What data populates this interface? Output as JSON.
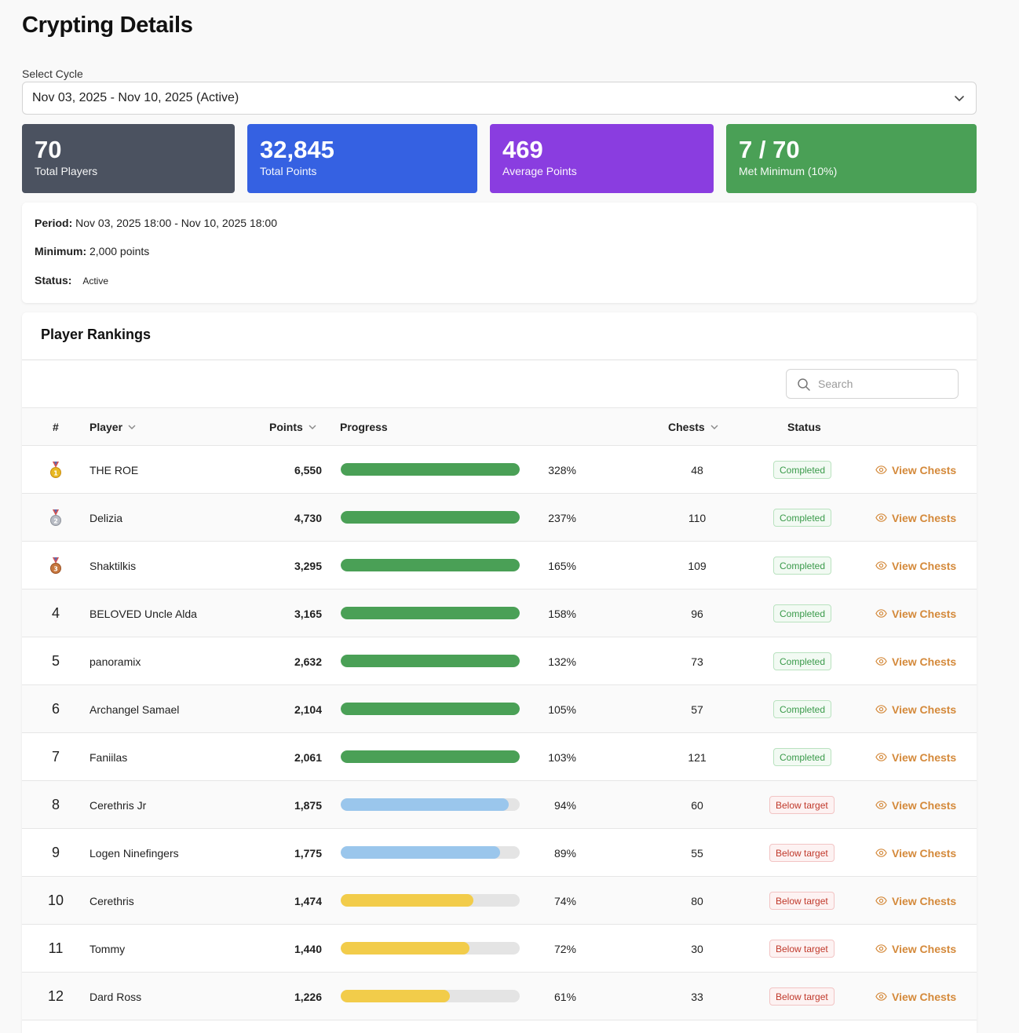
{
  "page": {
    "title": "Crypting Details",
    "cycle_label": "Select Cycle",
    "cycle_value": "Nov 03, 2025 - Nov 10, 2025 (Active)"
  },
  "stats": [
    {
      "value": "70",
      "label": "Total Players",
      "color": "#4b5260"
    },
    {
      "value": "32,845",
      "label": "Total Points",
      "color": "#3561e2"
    },
    {
      "value": "469",
      "label": "Average Points",
      "color": "#8a3de0"
    },
    {
      "value": "7 / 70",
      "label": "Met Minimum (10%)",
      "color": "#4aa056"
    }
  ],
  "info": {
    "period_label": "Period:",
    "period_value": "Nov 03, 2025 18:00 - Nov 10, 2025 18:00",
    "minimum_label": "Minimum:",
    "minimum_value": "2,000 points",
    "status_label": "Status:",
    "status_value": "Active"
  },
  "rankings": {
    "title": "Player Rankings",
    "search_placeholder": "Search",
    "headers": {
      "rank": "#",
      "player": "Player",
      "points": "Points",
      "progress": "Progress",
      "chests": "Chests",
      "status": "Status"
    },
    "view_label": "View Chests",
    "colors": {
      "complete": "#4aa056",
      "near": "#9ac6ec",
      "mid": "#f2cc4a",
      "link": "#d4893a"
    },
    "rows": [
      {
        "rank": "1",
        "medal": "gold-medal-icon",
        "player": "THE ROE",
        "points": "6,550",
        "progress": 3.28,
        "pct": "328%",
        "chests": "48",
        "status": "Completed"
      },
      {
        "rank": "2",
        "medal": "silver-medal-icon",
        "player": "Delizia",
        "points": "4,730",
        "progress": 2.37,
        "pct": "237%",
        "chests": "110",
        "status": "Completed"
      },
      {
        "rank": "3",
        "medal": "bronze-medal-icon",
        "player": "Shaktilkis",
        "points": "3,295",
        "progress": 1.65,
        "pct": "165%",
        "chests": "109",
        "status": "Completed"
      },
      {
        "rank": "4",
        "player": "BELOVED Uncle Alda",
        "points": "3,165",
        "progress": 1.58,
        "pct": "158%",
        "chests": "96",
        "status": "Completed"
      },
      {
        "rank": "5",
        "player": "panoramix",
        "points": "2,632",
        "progress": 1.32,
        "pct": "132%",
        "chests": "73",
        "status": "Completed"
      },
      {
        "rank": "6",
        "player": "Archangel Samael",
        "points": "2,104",
        "progress": 1.05,
        "pct": "105%",
        "chests": "57",
        "status": "Completed"
      },
      {
        "rank": "7",
        "player": "Faniilas",
        "points": "2,061",
        "progress": 1.03,
        "pct": "103%",
        "chests": "121",
        "status": "Completed"
      },
      {
        "rank": "8",
        "player": "Cerethris Jr",
        "points": "1,875",
        "progress": 0.94,
        "pct": "94%",
        "chests": "60",
        "status": "Below target"
      },
      {
        "rank": "9",
        "player": "Logen Ninefingers",
        "points": "1,775",
        "progress": 0.89,
        "pct": "89%",
        "chests": "55",
        "status": "Below target"
      },
      {
        "rank": "10",
        "player": "Cerethris",
        "points": "1,474",
        "progress": 0.74,
        "pct": "74%",
        "chests": "80",
        "status": "Below target"
      },
      {
        "rank": "11",
        "player": "Tommy",
        "points": "1,440",
        "progress": 0.72,
        "pct": "72%",
        "chests": "30",
        "status": "Below target"
      },
      {
        "rank": "12",
        "player": "Dard Ross",
        "points": "1,226",
        "progress": 0.61,
        "pct": "61%",
        "chests": "33",
        "status": "Below target"
      }
    ]
  }
}
